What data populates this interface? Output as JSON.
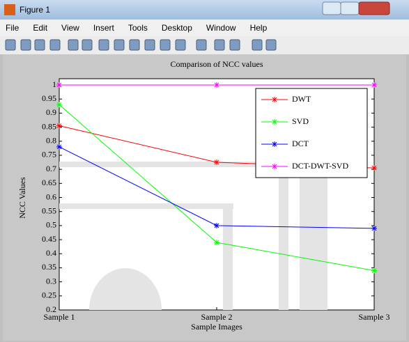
{
  "window": {
    "title": "Figure 1",
    "menu": [
      "File",
      "Edit",
      "View",
      "Insert",
      "Tools",
      "Desktop",
      "Window",
      "Help"
    ]
  },
  "chart_data": {
    "type": "line",
    "title": "Comparison of NCC values",
    "x_label": "Sample Images",
    "y_label": "NCC Values",
    "categories": [
      "Sample 1",
      "Sample 2",
      "Sample 3"
    ],
    "series": [
      {
        "name": "DWT",
        "color": "#ff0000",
        "values": [
          0.855,
          0.725,
          0.705
        ]
      },
      {
        "name": "SVD",
        "color": "#00ff00",
        "values": [
          0.93,
          0.44,
          0.34
        ]
      },
      {
        "name": "DCT",
        "color": "#0000ff",
        "values": [
          0.78,
          0.5,
          0.49
        ]
      },
      {
        "name": "DCT-DWT-SVD",
        "color": "#ff00ff",
        "values": [
          1,
          1,
          1
        ]
      }
    ],
    "ylim": [
      0.2,
      1
    ],
    "yticks": [
      0.2,
      0.25,
      0.3,
      0.35,
      0.4,
      0.45,
      0.5,
      0.55,
      0.6,
      0.65,
      0.7,
      0.75,
      0.8,
      0.85,
      0.9,
      0.95,
      1
    ],
    "grid": false,
    "legend": "top-right"
  }
}
